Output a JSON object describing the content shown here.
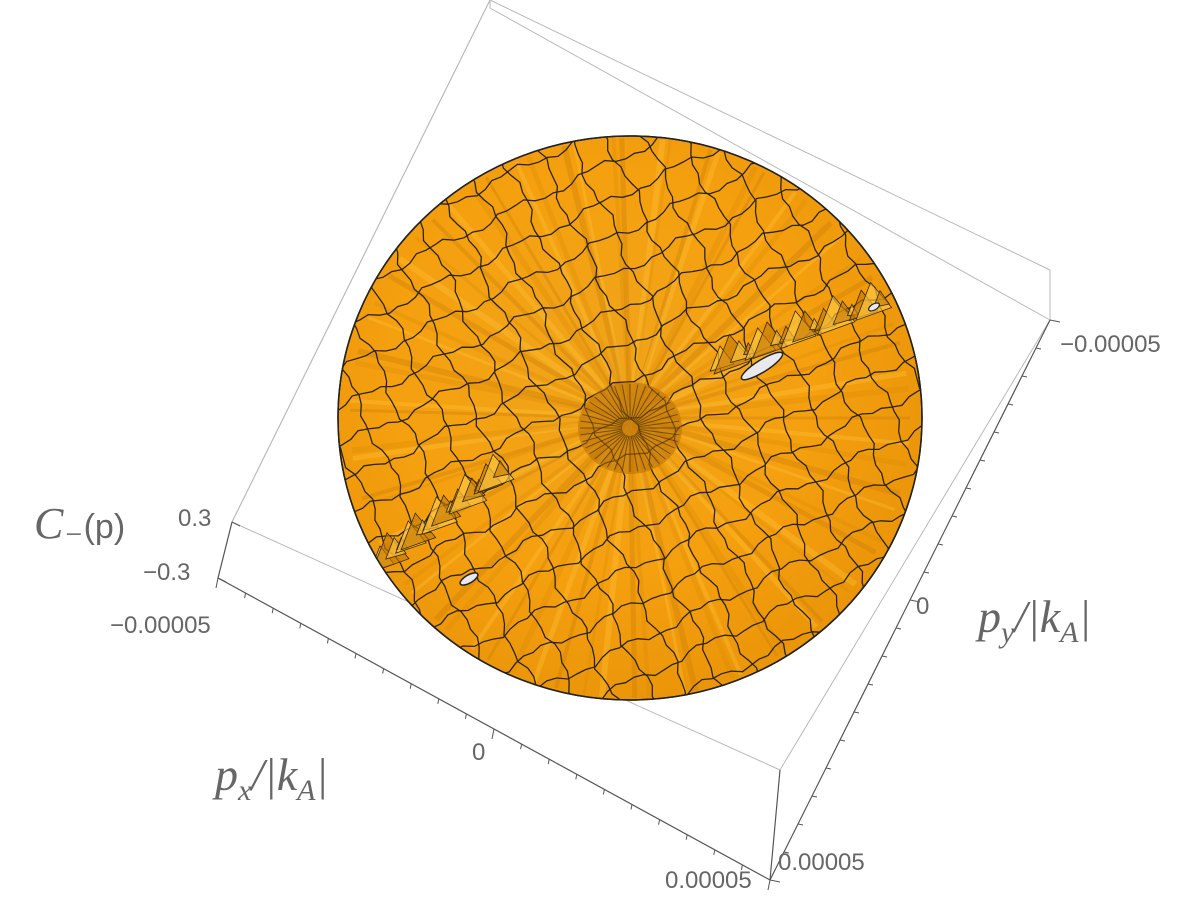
{
  "chart_data": {
    "type": "surface3d",
    "title": "",
    "xlabel": {
      "main": "p",
      "sub": "x",
      "mid": "/|k",
      "sub2": "A",
      "end": "|"
    },
    "ylabel": {
      "main": "p",
      "sub": "y",
      "mid": "/|k",
      "sub2": "A",
      "end": "|"
    },
    "zlabel": {
      "main": "C",
      "sub": "−",
      "end": "(p)"
    },
    "xlim": [
      -5e-05,
      5e-05
    ],
    "ylim": [
      -5e-05,
      5e-05
    ],
    "zlim": [
      -0.3,
      0.3
    ],
    "x_ticks": [
      "−0.00005",
      "0",
      "0.00005"
    ],
    "y_ticks": [
      "−0.00005",
      "0",
      "0.00005"
    ],
    "z_ticks": [
      "0.3",
      "−0.3"
    ],
    "domain": "disk",
    "mesh": true,
    "surface_color": "#f5a00f",
    "mesh_color": "#2b2410",
    "box_color": "#b5b5b5"
  }
}
